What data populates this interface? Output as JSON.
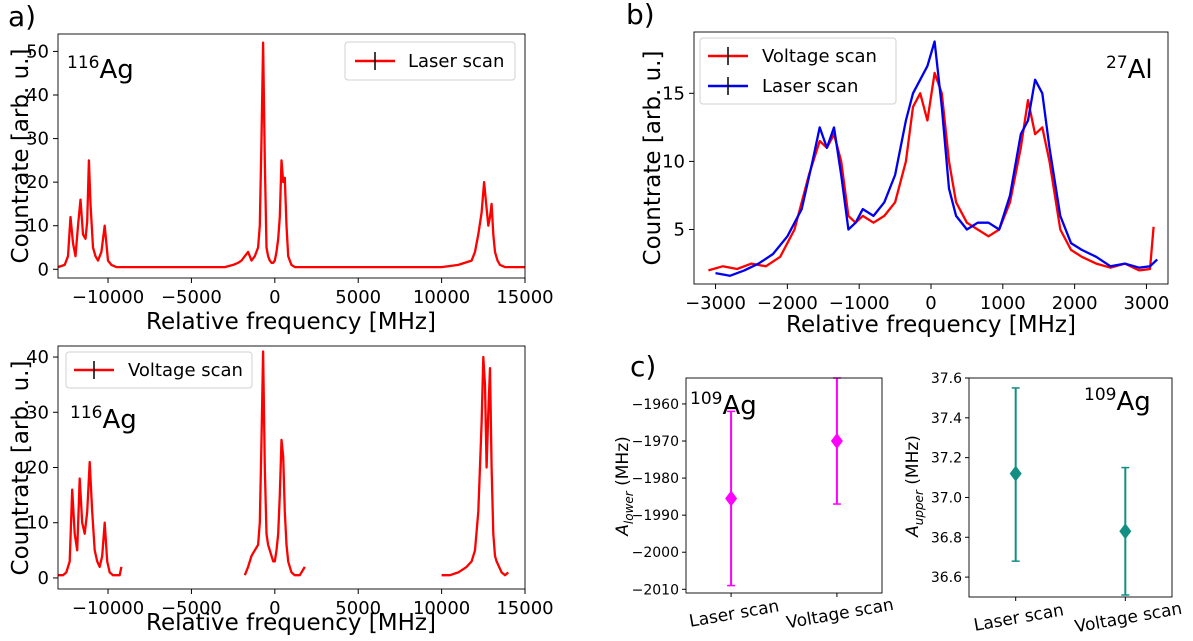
{
  "panel_labels": [
    "a)",
    "b)",
    "c)"
  ],
  "chart_data": [
    {
      "id": "a1",
      "type": "line",
      "annotation": {
        "sup": "116",
        "base": "Ag"
      },
      "xlabel": "Relative frequency [MHz]",
      "ylabel": "Countrate [arb. u.]",
      "xlim": [
        -13000,
        15000
      ],
      "ylim": [
        -2,
        54
      ],
      "xticks": [
        -10000,
        -5000,
        0,
        5000,
        10000,
        15000
      ],
      "xtick_labels": [
        "−10000",
        "−5000",
        "0",
        "5000",
        "10000",
        "15000"
      ],
      "yticks": [
        0,
        10,
        20,
        30,
        40,
        50
      ],
      "ytick_labels": [
        "0",
        "10",
        "20",
        "30",
        "40",
        "50"
      ],
      "legend": {
        "position": "upper right",
        "entries": [
          "Laser scan"
        ]
      },
      "series": [
        {
          "name": "Laser scan",
          "color": "#ff0000",
          "x": [
            -13000,
            -12600,
            -12400,
            -12250,
            -12100,
            -11950,
            -11800,
            -11650,
            -11500,
            -11350,
            -11250,
            -11150,
            -11050,
            -10900,
            -10750,
            -10600,
            -10400,
            -10200,
            -10000,
            -9800,
            -9500,
            -9000,
            -8500,
            -8000,
            -7500,
            -7000,
            -6500,
            -6000,
            -5500,
            -5000,
            -4500,
            -4000,
            -3500,
            -3000,
            -2500,
            -2200,
            -2000,
            -1800,
            -1600,
            -1400,
            -1200,
            -1000,
            -900,
            -800,
            -700,
            -600,
            -500,
            -400,
            -300,
            -200,
            -100,
            0,
            100,
            200,
            300,
            400,
            500,
            600,
            700,
            800,
            900,
            1000,
            1200,
            1500,
            2000,
            3000,
            4000,
            5000,
            6000,
            7000,
            8000,
            9000,
            10000,
            11000,
            11800,
            12000,
            12200,
            12400,
            12550,
            12700,
            12800,
            12900,
            13000,
            13100,
            13200,
            13350,
            13500,
            13800,
            14200,
            14600,
            15000
          ],
          "y": [
            0.5,
            1,
            3,
            12,
            6,
            3,
            10,
            16,
            8,
            7,
            11,
            25,
            15,
            5,
            3,
            2,
            4,
            10,
            2,
            1,
            0.5,
            0.5,
            0.5,
            0.5,
            0.5,
            0.5,
            0.5,
            0.5,
            0.5,
            0.5,
            0.5,
            0.5,
            0.5,
            0.5,
            1,
            1.5,
            2,
            3,
            4,
            2,
            3,
            5,
            10,
            30,
            52,
            25,
            5,
            3,
            2,
            1.5,
            1.5,
            2,
            4,
            7,
            12,
            25,
            20,
            21,
            10,
            3,
            2,
            1,
            0.5,
            0.5,
            0.5,
            0.5,
            0.5,
            0.5,
            0.5,
            0.5,
            0.5,
            0.5,
            0.5,
            1,
            2,
            4,
            8,
            13,
            20,
            14,
            10,
            12,
            15,
            8,
            4,
            2,
            1,
            0.5,
            0.5,
            0.5,
            0.5
          ]
        }
      ]
    },
    {
      "id": "a2",
      "type": "line",
      "annotation": {
        "sup": "116",
        "base": "Ag"
      },
      "xlabel": "Relative frequency [MHz]",
      "ylabel": "Countrate [arb. u.]",
      "xlim": [
        -13000,
        15000
      ],
      "ylim": [
        -2,
        42
      ],
      "xticks": [
        -10000,
        -5000,
        0,
        5000,
        10000,
        15000
      ],
      "xtick_labels": [
        "−10000",
        "−5000",
        "0",
        "5000",
        "10000",
        "15000"
      ],
      "yticks": [
        0,
        10,
        20,
        30,
        40
      ],
      "ytick_labels": [
        "0",
        "10",
        "20",
        "30",
        "40"
      ],
      "legend": {
        "position": "upper left",
        "entries": [
          "Voltage scan"
        ]
      },
      "series": [
        {
          "name": "Voltage scan",
          "color": "#ff0000",
          "segments": [
            {
              "x": [
                -13000,
                -12700,
                -12500,
                -12300,
                -12150,
                -12000,
                -11850,
                -11700,
                -11550,
                -11400,
                -11250,
                -11100,
                -10950,
                -10800,
                -10650,
                -10500,
                -10350,
                -10200,
                -10050,
                -9900,
                -9700,
                -9500,
                -9300,
                -9200
              ],
              "y": [
                0.5,
                0.5,
                1,
                3,
                16,
                8,
                5,
                18,
                10,
                8,
                12,
                21,
                12,
                5,
                3,
                2,
                4,
                10,
                3,
                1,
                0.5,
                0.5,
                0.5,
                2
              ]
            },
            {
              "x": [
                -1800,
                -1600,
                -1400,
                -1200,
                -1000,
                -900,
                -800,
                -700,
                -600,
                -500,
                -400,
                -300,
                -200,
                -100,
                0,
                100,
                200,
                300,
                400,
                500,
                600,
                700,
                800,
                900,
                1000,
                1200,
                1500,
                1800
              ],
              "y": [
                0.5,
                2,
                4,
                5,
                6,
                10,
                25,
                41,
                20,
                8,
                6,
                5,
                4,
                3,
                3,
                5,
                8,
                15,
                25,
                22,
                12,
                6,
                3,
                2,
                1,
                0.5,
                0.5,
                2
              ]
            },
            {
              "x": [
                10000,
                10500,
                11000,
                11500,
                11800,
                12000,
                12200,
                12400,
                12500,
                12600,
                12700,
                12800,
                12900,
                13000,
                13100,
                13200,
                13300,
                13450,
                13600,
                13800,
                14000
              ],
              "y": [
                0.5,
                0.5,
                1,
                2,
                3,
                5,
                12,
                28,
                40,
                35,
                20,
                30,
                38,
                20,
                8,
                4,
                3,
                2,
                1,
                0.5,
                1
              ]
            }
          ]
        }
      ]
    },
    {
      "id": "b",
      "type": "line",
      "annotation": {
        "sup": "27",
        "base": "Al"
      },
      "xlabel": "Relative frequency [MHz]",
      "ylabel": "Countrate [arb. u.]",
      "xlim": [
        -3300,
        3300
      ],
      "ylim": [
        1,
        19.5
      ],
      "xticks": [
        -3000,
        -2000,
        -1000,
        0,
        1000,
        2000,
        3000
      ],
      "xtick_labels": [
        "−3000",
        "−2000",
        "−1000",
        "0",
        "1000",
        "2000",
        "3000"
      ],
      "yticks": [
        5,
        10,
        15
      ],
      "ytick_labels": [
        "5",
        "10",
        "15"
      ],
      "legend": {
        "position": "upper left",
        "entries": [
          "Voltage scan",
          "Laser scan"
        ]
      },
      "series": [
        {
          "name": "Voltage scan",
          "color": "#ff0000",
          "x": [
            -3100,
            -2900,
            -2700,
            -2500,
            -2300,
            -2100,
            -1900,
            -1700,
            -1550,
            -1450,
            -1350,
            -1250,
            -1150,
            -1050,
            -950,
            -800,
            -650,
            -500,
            -350,
            -250,
            -150,
            -50,
            50,
            150,
            250,
            350,
            500,
            650,
            800,
            950,
            1100,
            1250,
            1350,
            1450,
            1550,
            1650,
            1800,
            1950,
            2100,
            2300,
            2500,
            2700,
            2900,
            3050,
            3100
          ],
          "y": [
            2,
            2.3,
            2.1,
            2.5,
            2.3,
            3,
            5,
            9,
            11.5,
            11,
            12,
            10,
            6,
            5.5,
            6,
            5.5,
            6,
            7,
            10,
            14,
            15,
            13,
            16.5,
            15,
            10,
            7,
            5.5,
            5,
            4.5,
            5,
            7,
            11,
            14.5,
            12,
            12.5,
            10,
            5,
            3.5,
            3,
            2.5,
            2.2,
            2.5,
            2,
            2.1,
            5.2
          ]
        },
        {
          "name": "Laser scan",
          "color": "#0000ee",
          "x": [
            -3000,
            -2800,
            -2600,
            -2400,
            -2200,
            -2000,
            -1800,
            -1650,
            -1550,
            -1450,
            -1350,
            -1250,
            -1150,
            -1050,
            -950,
            -800,
            -650,
            -500,
            -350,
            -250,
            -150,
            -50,
            50,
            150,
            250,
            350,
            500,
            650,
            800,
            950,
            1100,
            1250,
            1350,
            1450,
            1550,
            1650,
            1800,
            1950,
            2100,
            2300,
            2500,
            2700,
            2900,
            3050,
            3150
          ],
          "y": [
            1.8,
            1.6,
            2,
            2.5,
            3.2,
            4.5,
            6.5,
            10,
            12.5,
            11,
            12.5,
            9,
            5,
            5.5,
            6.5,
            6,
            7,
            9,
            13,
            15,
            16,
            17,
            18.8,
            14,
            8,
            6,
            5,
            5.5,
            5.5,
            5,
            7.5,
            12,
            13,
            16,
            15,
            11,
            6,
            4,
            3.5,
            3,
            2.3,
            2.5,
            2.2,
            2.3,
            2.8
          ]
        }
      ]
    },
    {
      "id": "c1",
      "type": "scatter",
      "annotation": {
        "sup": "109",
        "base": "Ag"
      },
      "ylabel": "A_lower (MHz)",
      "ylabel_parts": {
        "symbol": "A",
        "subscript": "lower",
        "unit": "(MHz)"
      },
      "categories": [
        "Laser scan",
        "Voltage scan"
      ],
      "ylim": [
        -2011,
        -1953
      ],
      "yticks": [
        -2010,
        -2000,
        -1990,
        -1980,
        -1970,
        -1960
      ],
      "ytick_labels": [
        "−2010",
        "−2000",
        "−1990",
        "−1980",
        "−1970",
        "−1960"
      ],
      "series": [
        {
          "name": "",
          "color": "#ff00ff",
          "marker": "diamond",
          "values": [
            -1985.5,
            -1970
          ],
          "err_low": [
            -2009,
            -1987
          ],
          "err_high": [
            -1962,
            -1953
          ]
        }
      ]
    },
    {
      "id": "c2",
      "type": "scatter",
      "annotation": {
        "sup": "109",
        "base": "Ag"
      },
      "ylabel": "A_upper (MHz)",
      "ylabel_parts": {
        "symbol": "A",
        "subscript": "upper",
        "unit": "(MHz)"
      },
      "categories": [
        "Laser scan",
        "Voltage scan"
      ],
      "ylim": [
        36.5,
        37.6
      ],
      "yticks": [
        36.6,
        36.8,
        37.0,
        37.2,
        37.4,
        37.6
      ],
      "ytick_labels": [
        "36.6",
        "36.8",
        "37.0",
        "37.2",
        "37.4",
        "37.6"
      ],
      "series": [
        {
          "name": "",
          "color": "#128f82",
          "marker": "diamond",
          "values": [
            37.12,
            36.83
          ],
          "err_low": [
            36.68,
            36.51
          ],
          "err_high": [
            37.55,
            37.15
          ]
        }
      ]
    }
  ]
}
